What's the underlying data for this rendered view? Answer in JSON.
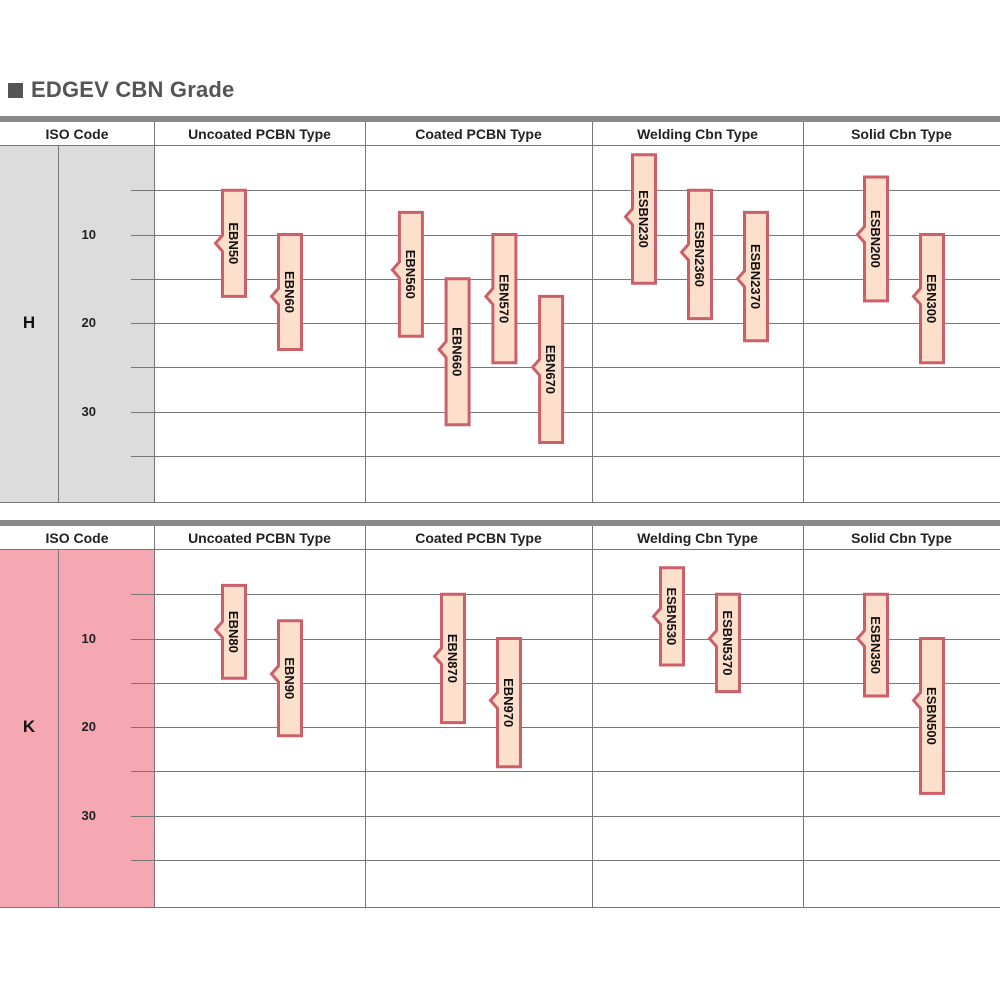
{
  "title": "EDGEV CBN Grade",
  "colors": {
    "h_shade": "#dcdcdc",
    "k_shade": "#f5a7b2",
    "fill": "#fde0cc",
    "stroke": "#cc5f6a"
  },
  "headers": [
    "ISO Code",
    "Uncoated PCBN Type",
    "Coated PCBN Type",
    "Welding Cbn Type",
    "Solid Cbn Type"
  ],
  "ticks": [
    "10",
    "20",
    "30"
  ],
  "sections": [
    {
      "letter": "H",
      "grades": [
        {
          "label": "EBN50",
          "column": 1,
          "from": 5,
          "to": 17,
          "tip": 11
        },
        {
          "label": "EBN60",
          "column": 1,
          "from": 10,
          "to": 23,
          "tip": 17
        },
        {
          "label": "EBN560",
          "column": 2,
          "from": 7.5,
          "to": 21.5,
          "tip": 14
        },
        {
          "label": "EBN660",
          "column": 2,
          "from": 15,
          "to": 31.5,
          "tip": 23
        },
        {
          "label": "EBN570",
          "column": 2,
          "from": 10,
          "to": 24.5,
          "tip": 17
        },
        {
          "label": "EBN670",
          "column": 2,
          "from": 17,
          "to": 33.5,
          "tip": 25
        },
        {
          "label": "ESBN230",
          "column": 3,
          "from": 1,
          "to": 15.5,
          "tip": 8
        },
        {
          "label": "ESBN2360",
          "column": 3,
          "from": 5,
          "to": 19.5,
          "tip": 12
        },
        {
          "label": "ESBN2370",
          "column": 3,
          "from": 7.5,
          "to": 22,
          "tip": 15
        },
        {
          "label": "ESBN200",
          "column": 4,
          "from": 3.5,
          "to": 17.5,
          "tip": 10
        },
        {
          "label": "EBN300",
          "column": 4,
          "from": 10,
          "to": 24.5,
          "tip": 17
        }
      ]
    },
    {
      "letter": "K",
      "grades": [
        {
          "label": "EBN80",
          "column": 1,
          "from": 4,
          "to": 14.5,
          "tip": 9
        },
        {
          "label": "EBN90",
          "column": 1,
          "from": 8,
          "to": 21,
          "tip": 14
        },
        {
          "label": "EBN870",
          "column": 2,
          "from": 5,
          "to": 19.5,
          "tip": 12
        },
        {
          "label": "EBN970",
          "column": 2,
          "from": 10,
          "to": 24.5,
          "tip": 17
        },
        {
          "label": "ESBN530",
          "column": 3,
          "from": 2,
          "to": 13,
          "tip": 7.5
        },
        {
          "label": "ESBN5370",
          "column": 3,
          "from": 5,
          "to": 16,
          "tip": 10
        },
        {
          "label": "ESBN350",
          "column": 4,
          "from": 5,
          "to": 16.5,
          "tip": 10
        },
        {
          "label": "ESBN500",
          "column": 4,
          "from": 10,
          "to": 27.5,
          "tip": 17
        }
      ]
    }
  ]
}
